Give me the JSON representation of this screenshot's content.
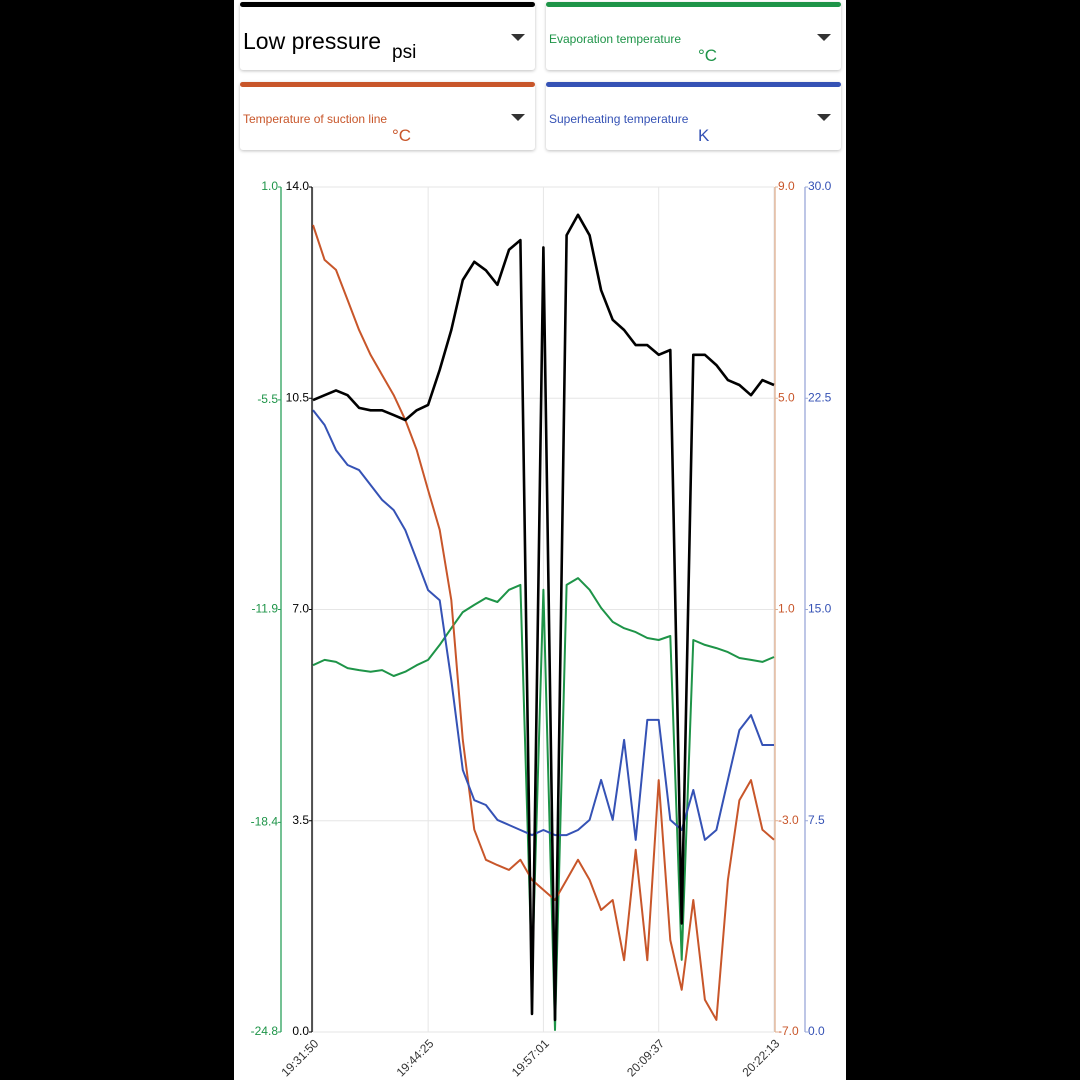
{
  "chart_data": {
    "type": "line",
    "x": [
      "19:31:50",
      "19:33:06",
      "19:34:21",
      "19:35:37",
      "19:36:52",
      "19:38:08",
      "19:39:23",
      "19:40:39",
      "19:41:55",
      "19:43:10",
      "19:44:25",
      "19:45:41",
      "19:46:57",
      "19:48:12",
      "19:49:28",
      "19:50:44",
      "19:51:59",
      "19:53:15",
      "19:54:30",
      "19:55:46",
      "19:57:01",
      "19:58:17",
      "19:59:33",
      "20:00:48",
      "20:02:04",
      "20:03:19",
      "20:04:35",
      "20:05:50",
      "20:07:06",
      "20:08:22",
      "20:09:37",
      "20:10:53",
      "20:12:08",
      "20:13:24",
      "20:14:40",
      "20:15:55",
      "20:17:11",
      "20:18:26",
      "20:19:42",
      "20:20:57",
      "20:22:13"
    ],
    "xticks": [
      "19:31:50",
      "19:44:25",
      "19:57:01",
      "20:09:37",
      "20:22:13"
    ],
    "grid": true,
    "series": [
      {
        "name": "Low pressure",
        "unit": "psi",
        "color": "#000000",
        "ylim": [
          0,
          14
        ],
        "yticks": [
          {
            "value": 0,
            "label": "0.0"
          },
          3.5,
          {
            "value": 7,
            "label": "7.0"
          },
          10.5,
          {
            "value": 14,
            "label": "14.0"
          }
        ],
        "values": [
          10.47,
          10.55,
          10.63,
          10.55,
          10.34,
          10.3,
          10.3,
          10.22,
          10.14,
          10.3,
          10.39,
          10.97,
          11.63,
          12.46,
          12.76,
          12.62,
          12.38,
          12.96,
          13.12,
          0.3,
          13.0,
          0.2,
          13.2,
          13.54,
          13.2,
          12.29,
          11.8,
          11.63,
          11.38,
          11.38,
          11.22,
          11.3,
          1.8,
          11.22,
          11.22,
          11.05,
          10.8,
          10.72,
          10.55,
          10.8,
          10.72
        ]
      },
      {
        "name": "Evaporation temperature",
        "unit": "°C",
        "color": "#1e9448",
        "ylim": [
          -24.8,
          1.0
        ],
        "yticks": [
          -24.8,
          -18.4,
          -11.9,
          -5.5,
          {
            "value": 1,
            "label": "1.0"
          }
        ],
        "values": [
          -13.6,
          -13.44,
          -13.5,
          -13.69,
          -13.75,
          -13.8,
          -13.75,
          -13.93,
          -13.8,
          -13.6,
          -13.44,
          -12.98,
          -12.47,
          -11.98,
          -11.76,
          -11.55,
          -11.67,
          -11.3,
          -11.15,
          -23.06,
          -11.3,
          -24.74,
          -11.15,
          -10.94,
          -11.3,
          -11.85,
          -12.28,
          -12.47,
          -12.59,
          -12.77,
          -12.83,
          -12.71,
          -22.6,
          -12.83,
          -12.98,
          -13.08,
          -13.2,
          -13.38,
          -13.44,
          -13.5,
          -13.35
        ]
      },
      {
        "name": "Temperature of suction line",
        "unit": "°C",
        "color": "#c8562a",
        "ylim": [
          -7,
          9
        ],
        "yticks": [
          {
            "value": -7,
            "label": "-7.0"
          },
          {
            "value": -3,
            "label": "-3.0"
          },
          {
            "value": 1,
            "label": "1.0"
          },
          {
            "value": 5,
            "label": "5.0"
          },
          {
            "value": 9,
            "label": "9.0"
          }
        ],
        "values": [
          8.28,
          7.62,
          7.43,
          6.86,
          6.29,
          5.82,
          5.44,
          5.06,
          4.59,
          4.02,
          3.26,
          2.51,
          1.18,
          -1.47,
          -3.17,
          -3.74,
          -3.84,
          -3.93,
          -3.74,
          -4.12,
          -4.31,
          -4.5,
          -4.12,
          -3.74,
          -4.12,
          -4.69,
          -4.5,
          -5.64,
          -3.55,
          -5.64,
          -2.23,
          -5.26,
          -6.2,
          -4.5,
          -6.39,
          -6.77,
          -4.12,
          -2.61,
          -2.23,
          -3.17,
          -3.36
        ]
      },
      {
        "name": "Superheating temperature",
        "unit": "K",
        "color": "#3552b5",
        "ylim": [
          0,
          30
        ],
        "yticks": [
          {
            "value": 0,
            "label": "0.0"
          },
          7.5,
          {
            "value": 15,
            "label": "15.0"
          },
          22.5,
          {
            "value": 30,
            "label": "30.0"
          }
        ],
        "values": [
          22.08,
          21.55,
          20.66,
          20.13,
          19.95,
          19.42,
          18.89,
          18.53,
          17.82,
          16.76,
          15.69,
          15.33,
          12.49,
          9.3,
          8.23,
          8.06,
          7.53,
          7.35,
          7.17,
          6.99,
          7.17,
          6.99,
          6.99,
          7.17,
          7.53,
          8.95,
          7.53,
          10.37,
          6.82,
          11.08,
          11.08,
          7.53,
          7.17,
          8.59,
          6.82,
          7.17,
          8.95,
          10.72,
          11.25,
          10.19,
          10.19
        ]
      }
    ]
  }
}
